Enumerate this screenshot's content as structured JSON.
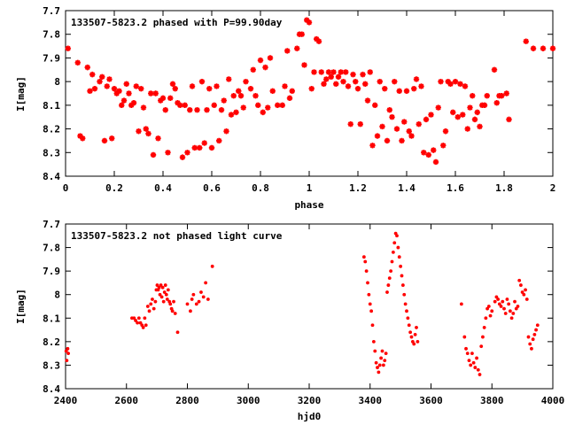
{
  "chart_data": [
    {
      "type": "scatter",
      "title": "133507-5823.2 phased with P=99.90day",
      "xlabel": "phase",
      "ylabel": "I[mag]",
      "xlim": [
        0,
        2
      ],
      "ylim": [
        8.4,
        7.7
      ],
      "y_inverted": true,
      "x_ticks": [
        "0",
        "0.2",
        "0.4",
        "0.6",
        "0.8",
        "1",
        "1.2",
        "1.4",
        "1.6",
        "1.8",
        "2"
      ],
      "y_ticks": [
        "7.7",
        "7.8",
        "7.9",
        "8",
        "8.1",
        "8.2",
        "8.3",
        "8.4"
      ],
      "marker_color": "#ff0000",
      "marker": "star",
      "grid": false,
      "points": [
        [
          0.01,
          7.86
        ],
        [
          0.05,
          7.92
        ],
        [
          0.06,
          8.23
        ],
        [
          0.07,
          8.24
        ],
        [
          0.09,
          7.94
        ],
        [
          0.1,
          8.04
        ],
        [
          0.11,
          7.97
        ],
        [
          0.12,
          8.03
        ],
        [
          0.14,
          8.0
        ],
        [
          0.15,
          7.98
        ],
        [
          0.16,
          8.25
        ],
        [
          0.17,
          8.02
        ],
        [
          0.18,
          7.99
        ],
        [
          0.19,
          8.24
        ],
        [
          0.2,
          8.03
        ],
        [
          0.21,
          8.05
        ],
        [
          0.22,
          8.04
        ],
        [
          0.23,
          8.1
        ],
        [
          0.24,
          8.08
        ],
        [
          0.25,
          8.01
        ],
        [
          0.26,
          8.05
        ],
        [
          0.27,
          8.1
        ],
        [
          0.28,
          8.09
        ],
        [
          0.29,
          8.02
        ],
        [
          0.3,
          8.21
        ],
        [
          0.31,
          8.03
        ],
        [
          0.32,
          8.11
        ],
        [
          0.33,
          8.2
        ],
        [
          0.34,
          8.22
        ],
        [
          0.35,
          8.05
        ],
        [
          0.36,
          8.31
        ],
        [
          0.37,
          8.05
        ],
        [
          0.38,
          8.24
        ],
        [
          0.39,
          8.08
        ],
        [
          0.4,
          8.07
        ],
        [
          0.41,
          8.12
        ],
        [
          0.42,
          8.3
        ],
        [
          0.43,
          8.07
        ],
        [
          0.44,
          8.01
        ],
        [
          0.45,
          8.03
        ],
        [
          0.46,
          8.09
        ],
        [
          0.47,
          8.1
        ],
        [
          0.48,
          8.32
        ],
        [
          0.49,
          8.1
        ],
        [
          0.5,
          8.3
        ],
        [
          0.51,
          8.12
        ],
        [
          0.52,
          8.02
        ],
        [
          0.53,
          8.28
        ],
        [
          0.54,
          8.12
        ],
        [
          0.55,
          8.28
        ],
        [
          0.56,
          8.0
        ],
        [
          0.57,
          8.26
        ],
        [
          0.58,
          8.12
        ],
        [
          0.59,
          8.03
        ],
        [
          0.6,
          8.28
        ],
        [
          0.61,
          8.1
        ],
        [
          0.62,
          8.02
        ],
        [
          0.63,
          8.25
        ],
        [
          0.64,
          8.12
        ],
        [
          0.65,
          8.08
        ],
        [
          0.66,
          8.21
        ],
        [
          0.67,
          7.99
        ],
        [
          0.68,
          8.14
        ],
        [
          0.69,
          8.06
        ],
        [
          0.7,
          8.13
        ],
        [
          0.71,
          8.04
        ],
        [
          0.72,
          8.06
        ],
        [
          0.73,
          8.11
        ],
        [
          0.74,
          8.0
        ],
        [
          0.76,
          8.03
        ],
        [
          0.77,
          7.95
        ],
        [
          0.78,
          8.06
        ],
        [
          0.79,
          8.1
        ],
        [
          0.8,
          7.91
        ],
        [
          0.81,
          8.13
        ],
        [
          0.82,
          7.94
        ],
        [
          0.83,
          8.11
        ],
        [
          0.84,
          7.9
        ],
        [
          0.85,
          8.04
        ],
        [
          0.87,
          8.1
        ],
        [
          0.89,
          8.1
        ],
        [
          0.9,
          8.02
        ],
        [
          0.91,
          7.87
        ],
        [
          0.92,
          8.07
        ],
        [
          0.93,
          8.04
        ],
        [
          0.95,
          7.86
        ],
        [
          0.96,
          7.8
        ],
        [
          0.97,
          7.8
        ],
        [
          0.98,
          7.93
        ],
        [
          0.99,
          7.74
        ],
        [
          1.0,
          7.75
        ],
        [
          1.01,
          8.03
        ],
        [
          1.02,
          7.96
        ],
        [
          1.03,
          7.82
        ],
        [
          1.04,
          7.83
        ],
        [
          1.05,
          7.96
        ],
        [
          1.06,
          8.01
        ],
        [
          1.07,
          7.99
        ],
        [
          1.08,
          7.96
        ],
        [
          1.09,
          7.98
        ],
        [
          1.1,
          7.96
        ],
        [
          1.11,
          8.01
        ],
        [
          1.12,
          7.98
        ],
        [
          1.13,
          7.96
        ],
        [
          1.14,
          8.0
        ],
        [
          1.15,
          7.96
        ],
        [
          1.16,
          8.02
        ],
        [
          1.17,
          8.18
        ],
        [
          1.18,
          7.97
        ],
        [
          1.19,
          8.0
        ],
        [
          1.2,
          8.03
        ],
        [
          1.21,
          8.18
        ],
        [
          1.22,
          7.97
        ],
        [
          1.23,
          8.01
        ],
        [
          1.24,
          8.08
        ],
        [
          1.25,
          7.96
        ],
        [
          1.26,
          8.27
        ],
        [
          1.27,
          8.1
        ],
        [
          1.28,
          8.23
        ],
        [
          1.29,
          8.0
        ],
        [
          1.3,
          8.19
        ],
        [
          1.31,
          8.03
        ],
        [
          1.32,
          8.25
        ],
        [
          1.33,
          8.12
        ],
        [
          1.34,
          8.15
        ],
        [
          1.35,
          8.0
        ],
        [
          1.36,
          8.2
        ],
        [
          1.37,
          8.04
        ],
        [
          1.38,
          8.25
        ],
        [
          1.39,
          8.17
        ],
        [
          1.4,
          8.04
        ],
        [
          1.41,
          8.21
        ],
        [
          1.42,
          8.23
        ],
        [
          1.43,
          8.03
        ],
        [
          1.44,
          7.99
        ],
        [
          1.45,
          8.18
        ],
        [
          1.46,
          8.02
        ],
        [
          1.47,
          8.3
        ],
        [
          1.48,
          8.16
        ],
        [
          1.49,
          8.31
        ],
        [
          1.5,
          8.14
        ],
        [
          1.51,
          8.29
        ],
        [
          1.52,
          8.34
        ],
        [
          1.53,
          8.11
        ],
        [
          1.54,
          8.0
        ],
        [
          1.55,
          8.27
        ],
        [
          1.56,
          8.21
        ],
        [
          1.57,
          8.0
        ],
        [
          1.58,
          8.01
        ],
        [
          1.59,
          8.13
        ],
        [
          1.6,
          8.0
        ],
        [
          1.61,
          8.15
        ],
        [
          1.62,
          8.01
        ],
        [
          1.63,
          8.14
        ],
        [
          1.64,
          8.02
        ],
        [
          1.65,
          8.2
        ],
        [
          1.66,
          8.11
        ],
        [
          1.67,
          8.06
        ],
        [
          1.68,
          8.16
        ],
        [
          1.69,
          8.13
        ],
        [
          1.7,
          8.19
        ],
        [
          1.71,
          8.1
        ],
        [
          1.72,
          8.1
        ],
        [
          1.73,
          8.06
        ],
        [
          1.76,
          7.95
        ],
        [
          1.77,
          8.09
        ],
        [
          1.78,
          8.06
        ],
        [
          1.79,
          8.06
        ],
        [
          1.81,
          8.05
        ],
        [
          1.82,
          8.16
        ],
        [
          1.89,
          7.83
        ],
        [
          1.92,
          7.86
        ],
        [
          1.96,
          7.86
        ],
        [
          2.0,
          7.86
        ]
      ]
    },
    {
      "type": "scatter",
      "title": "133507-5823.2 not phased light curve",
      "xlabel": "hjd0",
      "ylabel": "I[mag]",
      "xlim": [
        2400,
        4000
      ],
      "ylim": [
        8.4,
        7.7
      ],
      "y_inverted": true,
      "x_ticks": [
        "2400",
        "2600",
        "2800",
        "3000",
        "3200",
        "3400",
        "3600",
        "3800",
        "4000"
      ],
      "y_ticks": [
        "7.7",
        "7.8",
        "7.9",
        "8",
        "8.1",
        "8.2",
        "8.3",
        "8.4"
      ],
      "marker_color": "#ff0000",
      "marker": "dot",
      "grid": false,
      "points": [
        [
          2402,
          8.24
        ],
        [
          2404,
          8.28
        ],
        [
          2407,
          8.23
        ],
        [
          2409,
          8.25
        ],
        [
          2618,
          8.1
        ],
        [
          2625,
          8.1
        ],
        [
          2630,
          8.11
        ],
        [
          2636,
          8.12
        ],
        [
          2641,
          8.1
        ],
        [
          2646,
          8.12
        ],
        [
          2651,
          8.13
        ],
        [
          2655,
          8.14
        ],
        [
          2660,
          8.1
        ],
        [
          2664,
          8.13
        ],
        [
          2670,
          8.05
        ],
        [
          2675,
          8.07
        ],
        [
          2680,
          8.04
        ],
        [
          2685,
          8.02
        ],
        [
          2690,
          8.06
        ],
        [
          2695,
          8.03
        ],
        [
          2698,
          7.98
        ],
        [
          2701,
          7.96
        ],
        [
          2704,
          7.98
        ],
        [
          2707,
          7.97
        ],
        [
          2710,
          8.0
        ],
        [
          2713,
          7.96
        ],
        [
          2716,
          8.01
        ],
        [
          2719,
          7.97
        ],
        [
          2722,
          8.03
        ],
        [
          2725,
          7.99
        ],
        [
          2728,
          7.96
        ],
        [
          2731,
          8.0
        ],
        [
          2734,
          8.02
        ],
        [
          2737,
          7.98
        ],
        [
          2741,
          8.03
        ],
        [
          2744,
          8.04
        ],
        [
          2748,
          8.06
        ],
        [
          2751,
          8.07
        ],
        [
          2755,
          8.03
        ],
        [
          2760,
          8.08
        ],
        [
          2768,
          8.16
        ],
        [
          2800,
          8.04
        ],
        [
          2810,
          8.07
        ],
        [
          2815,
          8.02
        ],
        [
          2820,
          8.0
        ],
        [
          2830,
          8.04
        ],
        [
          2838,
          8.03
        ],
        [
          2845,
          7.99
        ],
        [
          2853,
          8.01
        ],
        [
          2860,
          7.95
        ],
        [
          2868,
          8.02
        ],
        [
          2882,
          7.88
        ],
        [
          3380,
          7.84
        ],
        [
          3384,
          7.86
        ],
        [
          3388,
          7.9
        ],
        [
          3392,
          7.95
        ],
        [
          3396,
          8.0
        ],
        [
          3400,
          8.04
        ],
        [
          3404,
          8.07
        ],
        [
          3408,
          8.13
        ],
        [
          3412,
          8.2
        ],
        [
          3416,
          8.24
        ],
        [
          3420,
          8.29
        ],
        [
          3424,
          8.31
        ],
        [
          3428,
          8.33
        ],
        [
          3432,
          8.3
        ],
        [
          3436,
          8.27
        ],
        [
          3440,
          8.24
        ],
        [
          3444,
          8.3
        ],
        [
          3448,
          8.28
        ],
        [
          3452,
          8.25
        ],
        [
          3456,
          7.99
        ],
        [
          3460,
          7.96
        ],
        [
          3464,
          7.93
        ],
        [
          3468,
          7.9
        ],
        [
          3472,
          7.86
        ],
        [
          3476,
          7.82
        ],
        [
          3480,
          7.78
        ],
        [
          3484,
          7.74
        ],
        [
          3488,
          7.75
        ],
        [
          3492,
          7.8
        ],
        [
          3496,
          7.84
        ],
        [
          3500,
          7.88
        ],
        [
          3504,
          7.92
        ],
        [
          3508,
          7.96
        ],
        [
          3512,
          8.0
        ],
        [
          3516,
          8.04
        ],
        [
          3520,
          8.07
        ],
        [
          3524,
          8.1
        ],
        [
          3528,
          8.13
        ],
        [
          3532,
          8.16
        ],
        [
          3536,
          8.18
        ],
        [
          3540,
          8.2
        ],
        [
          3544,
          8.21
        ],
        [
          3548,
          8.17
        ],
        [
          3552,
          8.14
        ],
        [
          3556,
          8.2
        ],
        [
          3700,
          8.04
        ],
        [
          3710,
          8.18
        ],
        [
          3715,
          8.23
        ],
        [
          3720,
          8.25
        ],
        [
          3725,
          8.28
        ],
        [
          3730,
          8.3
        ],
        [
          3735,
          8.25
        ],
        [
          3740,
          8.29
        ],
        [
          3745,
          8.31
        ],
        [
          3750,
          8.27
        ],
        [
          3755,
          8.32
        ],
        [
          3760,
          8.34
        ],
        [
          3765,
          8.22
        ],
        [
          3770,
          8.18
        ],
        [
          3775,
          8.14
        ],
        [
          3780,
          8.1
        ],
        [
          3785,
          8.06
        ],
        [
          3790,
          8.05
        ],
        [
          3795,
          8.09
        ],
        [
          3800,
          8.07
        ],
        [
          3810,
          8.03
        ],
        [
          3815,
          8.01
        ],
        [
          3820,
          8.02
        ],
        [
          3825,
          8.04
        ],
        [
          3830,
          8.05
        ],
        [
          3835,
          8.03
        ],
        [
          3840,
          8.06
        ],
        [
          3845,
          8.08
        ],
        [
          3850,
          8.02
        ],
        [
          3855,
          8.04
        ],
        [
          3860,
          8.07
        ],
        [
          3865,
          8.1
        ],
        [
          3870,
          8.08
        ],
        [
          3875,
          8.03
        ],
        [
          3880,
          8.06
        ],
        [
          3885,
          8.05
        ],
        [
          3890,
          7.94
        ],
        [
          3895,
          7.96
        ],
        [
          3900,
          7.99
        ],
        [
          3905,
          8.0
        ],
        [
          3910,
          7.98
        ],
        [
          3915,
          8.02
        ],
        [
          3920,
          8.18
        ],
        [
          3925,
          8.21
        ],
        [
          3930,
          8.23
        ],
        [
          3935,
          8.19
        ],
        [
          3940,
          8.17
        ],
        [
          3945,
          8.15
        ],
        [
          3950,
          8.13
        ]
      ]
    }
  ]
}
